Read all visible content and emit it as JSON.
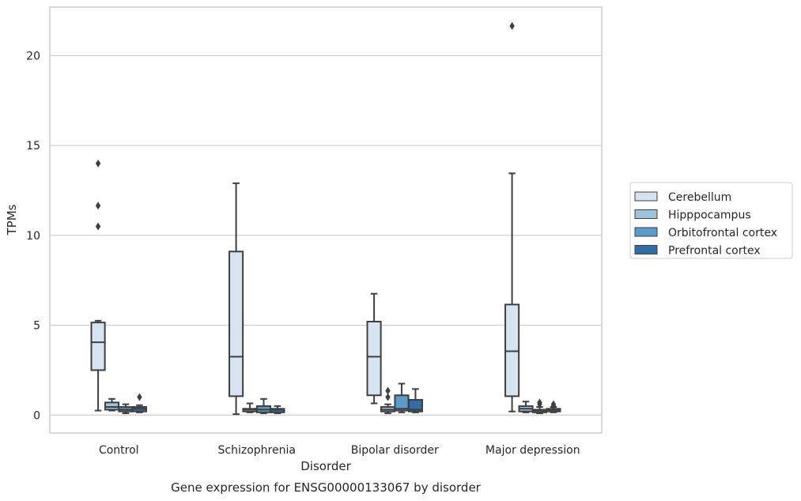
{
  "chart_data": {
    "type": "box",
    "caption": "Gene expression for ENSG00000133067 by disorder",
    "xlabel": "Disorder",
    "ylabel": "TPMs",
    "ylim": [
      -1,
      22.7
    ],
    "yticks": [
      0,
      5,
      10,
      15,
      20
    ],
    "grid": "horizontal",
    "legend_position": "right",
    "categories": [
      "Control",
      "Schizophrenia",
      "Bipolar disorder",
      "Major depression"
    ],
    "series": [
      {
        "name": "Cerebellum",
        "color": "#d6e4f2",
        "boxes": [
          {
            "whislo": 0.25,
            "q1": 2.5,
            "med": 4.05,
            "q3": 5.15,
            "whishi": 5.25,
            "fliers": [
              10.5,
              11.65,
              14.0
            ]
          },
          {
            "whislo": 0.05,
            "q1": 1.05,
            "med": 3.25,
            "q3": 9.1,
            "whishi": 12.9,
            "fliers": []
          },
          {
            "whislo": 0.65,
            "q1": 1.1,
            "med": 3.25,
            "q3": 5.2,
            "whishi": 6.75,
            "fliers": []
          },
          {
            "whislo": 0.2,
            "q1": 1.05,
            "med": 3.55,
            "q3": 6.15,
            "whishi": 13.45,
            "fliers": [
              21.65
            ]
          }
        ]
      },
      {
        "name": "Hipppocampus",
        "color": "#9bc3de",
        "boxes": [
          {
            "whislo": 0.25,
            "q1": 0.3,
            "med": 0.45,
            "q3": 0.7,
            "whishi": 0.9,
            "fliers": []
          },
          {
            "whislo": 0.15,
            "q1": 0.2,
            "med": 0.3,
            "q3": 0.35,
            "whishi": 0.65,
            "fliers": []
          },
          {
            "whislo": 0.1,
            "q1": 0.2,
            "med": 0.3,
            "q3": 0.45,
            "whishi": 0.6,
            "fliers": [
              1.0,
              1.35
            ]
          },
          {
            "whislo": 0.15,
            "q1": 0.2,
            "med": 0.35,
            "q3": 0.5,
            "whishi": 0.75,
            "fliers": []
          }
        ]
      },
      {
        "name": "Orbitofrontal cortex",
        "color": "#5a9bc9",
        "boxes": [
          {
            "whislo": 0.1,
            "q1": 0.2,
            "med": 0.3,
            "q3": 0.45,
            "whishi": 0.6,
            "fliers": []
          },
          {
            "whislo": 0.1,
            "q1": 0.15,
            "med": 0.3,
            "q3": 0.5,
            "whishi": 0.9,
            "fliers": []
          },
          {
            "whislo": 0.15,
            "q1": 0.25,
            "med": 0.35,
            "q3": 1.1,
            "whishi": 1.75,
            "fliers": []
          },
          {
            "whislo": 0.1,
            "q1": 0.15,
            "med": 0.25,
            "q3": 0.3,
            "whishi": 0.45,
            "fliers": [
              0.6,
              0.7
            ]
          }
        ]
      },
      {
        "name": "Prefrontal cortex",
        "color": "#2f6ea8",
        "boxes": [
          {
            "whislo": 0.15,
            "q1": 0.2,
            "med": 0.35,
            "q3": 0.45,
            "whishi": 0.55,
            "fliers": [
              1.0
            ]
          },
          {
            "whislo": 0.1,
            "q1": 0.15,
            "med": 0.3,
            "q3": 0.35,
            "whishi": 0.5,
            "fliers": []
          },
          {
            "whislo": 0.15,
            "q1": 0.2,
            "med": 0.3,
            "q3": 0.85,
            "whishi": 1.45,
            "fliers": []
          },
          {
            "whislo": 0.15,
            "q1": 0.2,
            "med": 0.3,
            "q3": 0.35,
            "whishi": 0.45,
            "fliers": [
              0.5,
              0.6
            ]
          }
        ]
      }
    ]
  }
}
